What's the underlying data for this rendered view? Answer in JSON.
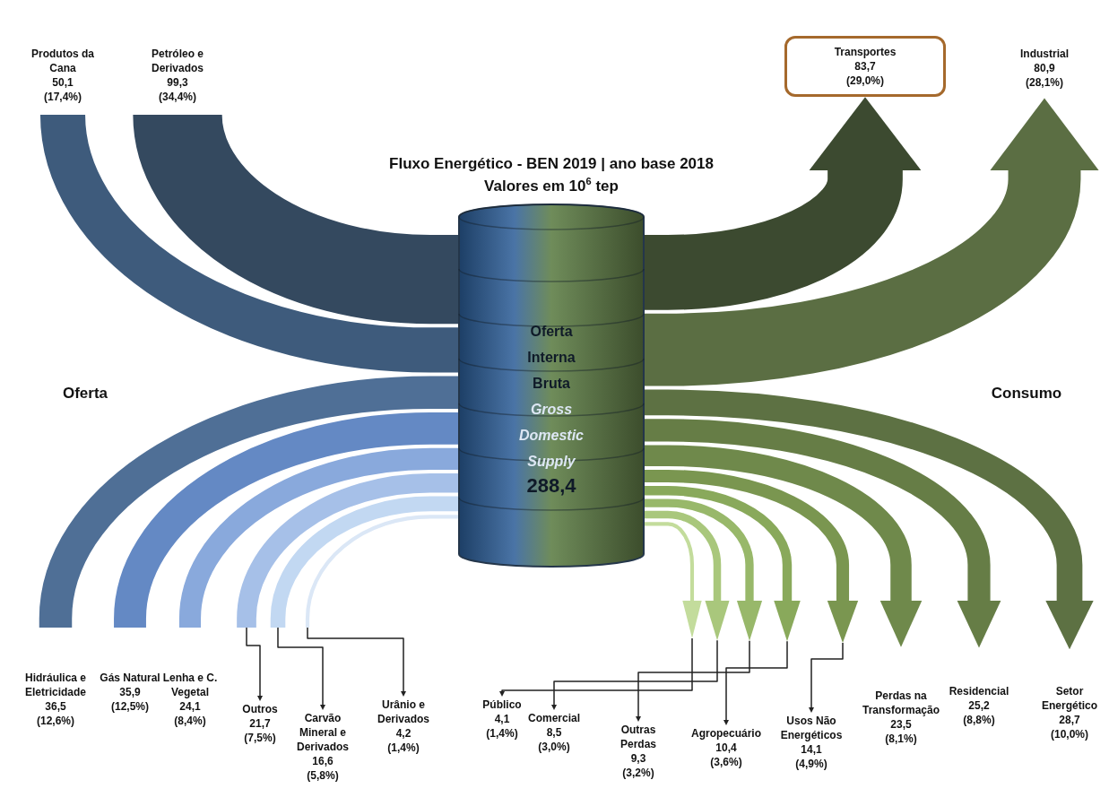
{
  "chart_data": {
    "type": "other",
    "title": "Fluxo Energético - BEN 2019 | ano base 2018",
    "subtitle": "Valores em 10$^{6}$ tep",
    "categories": [
      "Produtos da Cana",
      "Petróleo e Derivados",
      "Hidráulica e Eletricidade",
      "Gás Natural",
      "Lenha e C. Vegetal",
      "Outros",
      "Carvão Mineral e Derivados",
      "Urânio e Derivados",
      "Transportes",
      "Industrial",
      "Público",
      "Comercial",
      "Outras Perdas",
      "Agropecuário",
      "Usos Não Energéticos",
      "Perdas na Transformação",
      "Residencial",
      "Setor Energético"
    ],
    "series": [
      {
        "name": "Oferta",
        "values": [
          50.1,
          99.3,
          36.5,
          35.9,
          24.1,
          21.7,
          16.6,
          4.2,
          null,
          null,
          null,
          null,
          null,
          null,
          null,
          null,
          null,
          null
        ],
        "value_labels": [
          "50,1 (17,4%)",
          "99,3 (34,4%)",
          "36,5 (12,6%)",
          "35,9 (12,5%)",
          "24,1 (8,4%)",
          "21,7 (7,5%)",
          "16,6 (5,8%)",
          "4,2 (1,4%)",
          null,
          null,
          null,
          null,
          null,
          null,
          null,
          null,
          null,
          null
        ],
        "colors": [
          "#3e5b7c",
          "#34495f",
          "#4f6f96",
          "#6489c4",
          "#89a9dc",
          "#a6c0e8",
          "#c2d8f2",
          "#dbe7f6",
          null,
          null,
          null,
          null,
          null,
          null,
          null,
          null,
          null,
          null
        ]
      },
      {
        "name": "Consumo",
        "values": [
          null,
          null,
          null,
          null,
          null,
          null,
          null,
          null,
          83.7,
          80.9,
          4.1,
          8.5,
          9.3,
          10.4,
          14.1,
          23.5,
          25.2,
          28.7
        ],
        "value_labels": [
          null,
          null,
          null,
          null,
          null,
          null,
          null,
          null,
          "83,7 (29,0%)",
          "80,9 (28,1%)",
          "4,1 (1,4%)",
          "8,5 (3,0%)",
          "9,3 (3,2%)",
          "10,4 (3,6%)",
          "14,1 (4,9%)",
          "23,5 (8,1%)",
          "25,2 (8,8%)",
          "28,7 (10,0%)"
        ],
        "colors": [
          null,
          null,
          null,
          null,
          null,
          null,
          null,
          null,
          "#3c4a30",
          "#5b6e43",
          "#c3dc9c",
          "#a9c77c",
          "#98b86a",
          "#89a95b",
          "#7a9650",
          "#6f894b",
          "#667d46",
          "#5d7143"
        ]
      }
    ],
    "annotations": [
      "Oferta Interna Bruta",
      "Gross Domestic Supply",
      "288,4"
    ]
  }
}
